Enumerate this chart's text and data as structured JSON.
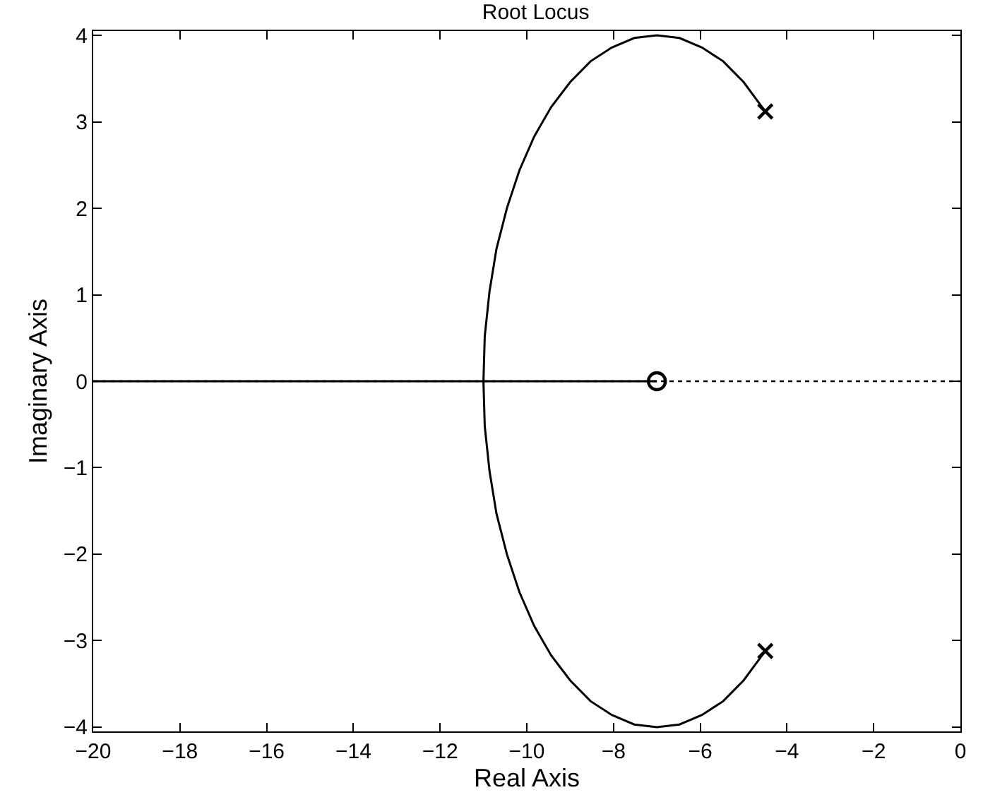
{
  "chart_data": {
    "type": "line",
    "title": "Root Locus",
    "xlabel": "Real Axis",
    "ylabel": "Imaginary Axis",
    "xlim": [
      -20,
      0
    ],
    "xticks": [
      {
        "value": -20,
        "label": "−20"
      },
      {
        "value": -18,
        "label": "−18"
      },
      {
        "value": -16,
        "label": "−16"
      },
      {
        "value": -14,
        "label": "−14"
      },
      {
        "value": -12,
        "label": "−12"
      },
      {
        "value": -10,
        "label": "−10"
      },
      {
        "value": -8,
        "label": "−8"
      },
      {
        "value": -6,
        "label": "−6"
      },
      {
        "value": -4,
        "label": "−4"
      },
      {
        "value": -2,
        "label": "−2"
      },
      0
    ],
    "ylim": [
      -4.05,
      4.05
    ],
    "yticks": [
      {
        "value": -4,
        "label": "−4"
      },
      {
        "value": -3,
        "label": "−3"
      },
      {
        "value": -2,
        "label": "−2"
      },
      {
        "value": -1,
        "label": "−1"
      },
      0,
      1,
      2,
      3,
      4
    ],
    "grid": false,
    "line_style": "solid",
    "series": [
      {
        "color": "#000000",
        "x": [
          -4.5,
          -5,
          -5.47,
          -5.96,
          -6.48,
          -7,
          -7.52,
          -8.04,
          -8.53,
          -9,
          -9.44,
          -9.83,
          -10.17,
          -10.46,
          -10.7,
          -10.86,
          -10.97,
          -11,
          -20
        ],
        "values": [
          3.12,
          3.46,
          3.7,
          3.86,
          3.97,
          4,
          3.97,
          3.86,
          3.7,
          3.46,
          3.17,
          2.83,
          2.44,
          2,
          1.53,
          1.04,
          0.52,
          0,
          0
        ]
      },
      {
        "color": "#000000",
        "x": [
          -4.5,
          -5,
          -5.47,
          -5.96,
          -6.48,
          -7,
          -7.52,
          -8.04,
          -8.53,
          -9,
          -9.44,
          -9.83,
          -10.17,
          -10.46,
          -10.7,
          -10.86,
          -10.97,
          -11,
          -7
        ],
        "values": [
          -3.12,
          -3.46,
          -3.7,
          -3.86,
          -3.97,
          -4,
          -3.97,
          -3.86,
          -3.7,
          -3.46,
          -3.17,
          -2.83,
          -2.44,
          -2,
          -1.53,
          -1.04,
          -0.52,
          0,
          0
        ]
      },
      {
        "type": "scatter",
        "marker": "cross",
        "color": "#000000",
        "x": [
          -4.5,
          -4.5
        ],
        "values": [
          3.12,
          -3.12
        ]
      },
      {
        "type": "scatter",
        "marker": "circle",
        "color": "#000000",
        "x": [
          -7
        ],
        "values": [
          0
        ]
      }
    ],
    "ref_lines": [
      {
        "axis": "y",
        "value": 0,
        "color": "#000000",
        "line_style": "dotted"
      }
    ]
  }
}
